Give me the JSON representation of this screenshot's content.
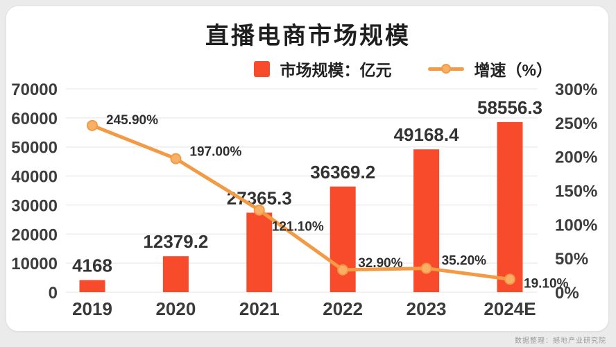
{
  "page": {
    "footer": "数据整理：撼地产业研究院"
  },
  "chart_data": {
    "type": "bar+line",
    "title": "直播电商市场规模",
    "categories": [
      "2019",
      "2020",
      "2021",
      "2022",
      "2023",
      "2024E"
    ],
    "series": [
      {
        "name": "市场规模：亿元",
        "chart": "bar",
        "axis": "left",
        "color": "#F84B2B",
        "values": [
          4168,
          12379.2,
          27365.3,
          36369.2,
          49168.4,
          58556.3
        ],
        "labels": [
          "4168",
          "12379.2",
          "27365.3",
          "36369.2",
          "49168.4",
          "58556.3"
        ]
      },
      {
        "name": "增速（%）",
        "chart": "line",
        "axis": "right",
        "color": "#F29A45",
        "marker_fill": "#F7B066",
        "values": [
          245.9,
          197,
          121.1,
          32.9,
          35.2,
          19.1
        ],
        "labels": [
          "245.90%",
          "197.00%",
          "121.10%",
          "32.90%",
          "35.20%",
          "19.10%"
        ]
      }
    ],
    "xlabel": "",
    "ylabel": "",
    "ylim": [
      0,
      70000
    ],
    "y_ticks": [
      0,
      10000,
      20000,
      30000,
      40000,
      50000,
      60000,
      70000
    ],
    "y2lim": [
      0,
      300
    ],
    "y2_ticks": [
      0,
      50,
      100,
      150,
      200,
      250,
      300
    ],
    "grid": true,
    "legend_position": "top-right"
  }
}
